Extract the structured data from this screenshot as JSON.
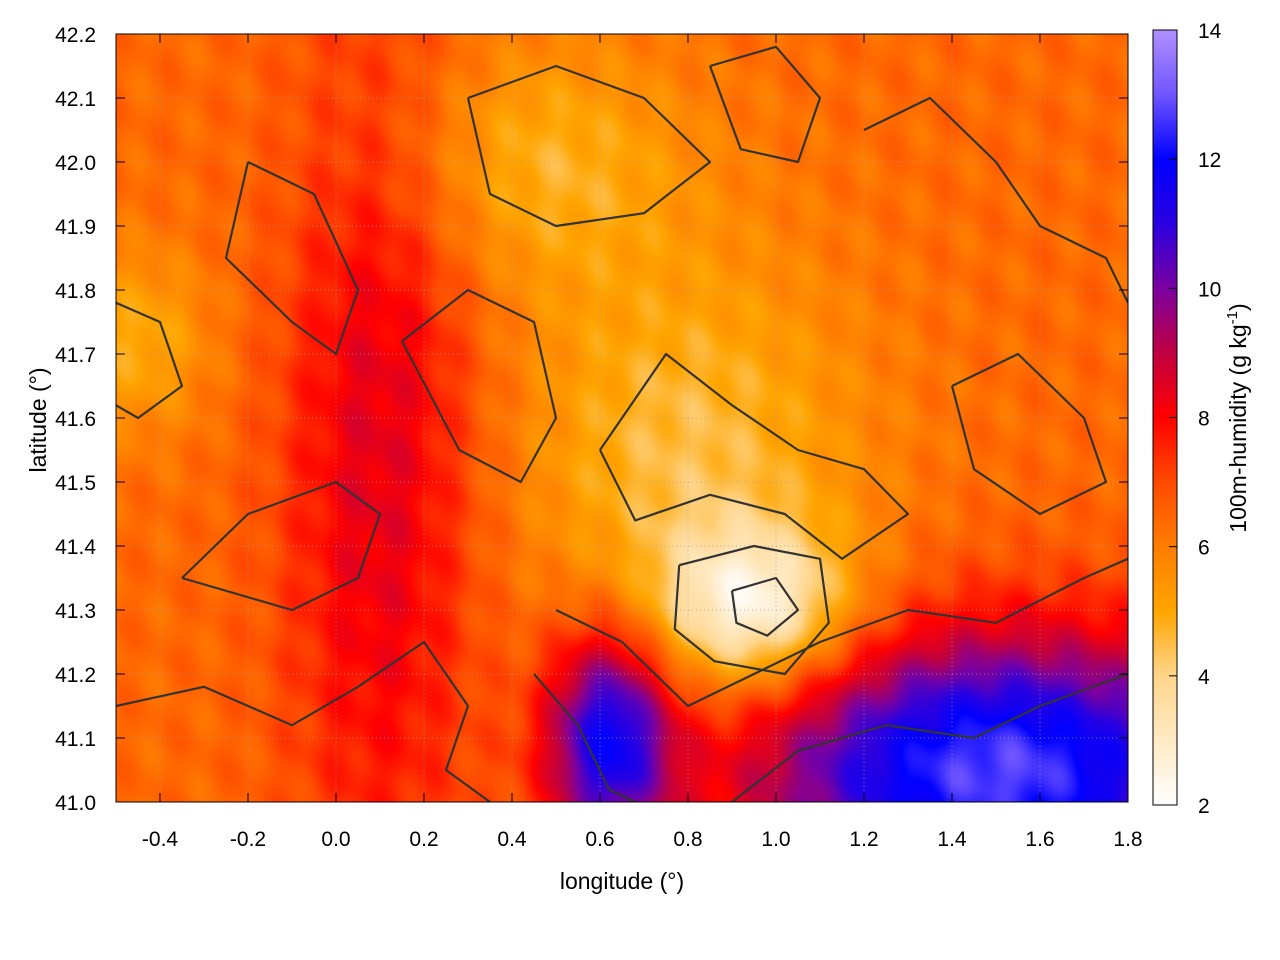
{
  "chart_data": {
    "type": "heatmap",
    "title": "",
    "xlabel": "longitude (°)",
    "ylabel": "latitude (°)",
    "xlim": [
      -0.5,
      1.8
    ],
    "ylim": [
      41.0,
      42.2
    ],
    "xticks": [
      "-0.4",
      "-0.2",
      "0.0",
      "0.2",
      "0.4",
      "0.6",
      "0.8",
      "1.0",
      "1.2",
      "1.4",
      "1.6",
      "1.8"
    ],
    "yticks": [
      "41.0",
      "41.1",
      "41.2",
      "41.3",
      "41.4",
      "41.5",
      "41.6",
      "41.7",
      "41.8",
      "41.9",
      "42.0",
      "42.1",
      "42.2"
    ],
    "grid": true,
    "colorbar": {
      "label_main": "100m-humidity (g kg",
      "label_exp": "-1",
      "label_close": ")",
      "range": [
        2,
        14
      ],
      "ticks": [
        "2",
        "4",
        "6",
        "8",
        "10",
        "12",
        "14"
      ],
      "stops": [
        {
          "value": 2,
          "color": "#ffffff"
        },
        {
          "value": 4,
          "color": "#ffd58a"
        },
        {
          "value": 5,
          "color": "#ffa500"
        },
        {
          "value": 6,
          "color": "#ff7d00"
        },
        {
          "value": 7,
          "color": "#ff4a00"
        },
        {
          "value": 8,
          "color": "#ff0000"
        },
        {
          "value": 9,
          "color": "#c00040"
        },
        {
          "value": 10,
          "color": "#7a00a0"
        },
        {
          "value": 11,
          "color": "#2a00e0"
        },
        {
          "value": 12,
          "color": "#0000ff"
        },
        {
          "value": 13,
          "color": "#7055ff"
        },
        {
          "value": 14,
          "color": "#b090ff"
        }
      ]
    },
    "field_features": [
      {
        "name": "dry core",
        "lon": 0.95,
        "lat": 41.3,
        "value": 2.8,
        "spread_lon": 0.16,
        "spread_lat": 0.09
      },
      {
        "name": "dry plume",
        "lon": 0.8,
        "lat": 41.55,
        "value": 4.5,
        "spread_lon": 0.28,
        "spread_lat": 0.22
      },
      {
        "name": "dry north",
        "lon": 0.45,
        "lat": 42.0,
        "value": 4.8,
        "spread_lon": 0.25,
        "spread_lat": 0.14
      },
      {
        "name": "dry west",
        "lon": -0.45,
        "lat": 41.72,
        "value": 4.9,
        "spread_lon": 0.12,
        "spread_lat": 0.1
      },
      {
        "name": "moist band",
        "lon": 0.1,
        "lat": 41.55,
        "value": 8.5,
        "spread_lon": 0.16,
        "spread_lat": 0.5
      },
      {
        "name": "coastal moist",
        "lon": 1.5,
        "lat": 41.05,
        "value": 12.8,
        "spread_lon": 0.4,
        "spread_lat": 0.15
      },
      {
        "name": "coastal moist west",
        "lon": 0.62,
        "lat": 41.1,
        "value": 11.5,
        "spread_lon": 0.1,
        "spread_lat": 0.12
      }
    ],
    "contours": [
      {
        "name": "contour-dry-core",
        "points": [
          [
            0.78,
            41.37
          ],
          [
            0.95,
            41.4
          ],
          [
            1.1,
            41.38
          ],
          [
            1.12,
            41.28
          ],
          [
            1.02,
            41.2
          ],
          [
            0.86,
            41.22
          ],
          [
            0.77,
            41.27
          ],
          [
            0.78,
            41.37
          ]
        ]
      },
      {
        "name": "contour-dry-inner",
        "points": [
          [
            0.9,
            41.33
          ],
          [
            1.0,
            41.35
          ],
          [
            1.05,
            41.3
          ],
          [
            0.98,
            41.26
          ],
          [
            0.91,
            41.28
          ],
          [
            0.9,
            41.33
          ]
        ]
      },
      {
        "name": "contour-dry-plume",
        "points": [
          [
            0.6,
            41.55
          ],
          [
            0.75,
            41.7
          ],
          [
            0.9,
            41.62
          ],
          [
            1.05,
            41.55
          ],
          [
            1.2,
            41.52
          ],
          [
            1.3,
            41.45
          ],
          [
            1.15,
            41.38
          ],
          [
            1.02,
            41.45
          ],
          [
            0.85,
            41.48
          ],
          [
            0.68,
            41.44
          ],
          [
            0.6,
            41.55
          ]
        ]
      },
      {
        "name": "contour-north-1",
        "points": [
          [
            0.3,
            42.1
          ],
          [
            0.5,
            42.15
          ],
          [
            0.7,
            42.1
          ],
          [
            0.85,
            42.0
          ],
          [
            0.7,
            41.92
          ],
          [
            0.5,
            41.9
          ],
          [
            0.35,
            41.95
          ],
          [
            0.3,
            42.1
          ]
        ]
      },
      {
        "name": "contour-north-2",
        "points": [
          [
            0.85,
            42.15
          ],
          [
            1.0,
            42.18
          ],
          [
            1.1,
            42.1
          ],
          [
            1.05,
            42.0
          ],
          [
            0.92,
            42.02
          ],
          [
            0.85,
            42.15
          ]
        ]
      },
      {
        "name": "contour-west-1",
        "points": [
          [
            -0.5,
            41.78
          ],
          [
            -0.4,
            41.75
          ],
          [
            -0.35,
            41.65
          ],
          [
            -0.45,
            41.6
          ],
          [
            -0.5,
            41.62
          ]
        ]
      },
      {
        "name": "contour-band-west",
        "points": [
          [
            -0.2,
            42.0
          ],
          [
            -0.05,
            41.95
          ],
          [
            0.05,
            41.8
          ],
          [
            0.0,
            41.7
          ],
          [
            -0.1,
            41.75
          ],
          [
            -0.25,
            41.85
          ],
          [
            -0.2,
            42.0
          ]
        ]
      },
      {
        "name": "contour-band-south",
        "points": [
          [
            -0.35,
            41.35
          ],
          [
            -0.1,
            41.3
          ],
          [
            0.05,
            41.35
          ],
          [
            0.1,
            41.45
          ],
          [
            0.0,
            41.5
          ],
          [
            -0.2,
            41.45
          ],
          [
            -0.35,
            41.35
          ]
        ]
      },
      {
        "name": "contour-central",
        "points": [
          [
            0.15,
            41.72
          ],
          [
            0.3,
            41.8
          ],
          [
            0.45,
            41.75
          ],
          [
            0.5,
            41.6
          ],
          [
            0.42,
            41.5
          ],
          [
            0.28,
            41.55
          ],
          [
            0.15,
            41.72
          ]
        ]
      },
      {
        "name": "contour-coast-1",
        "points": [
          [
            0.5,
            41.3
          ],
          [
            0.65,
            41.25
          ],
          [
            0.8,
            41.15
          ],
          [
            0.95,
            41.2
          ],
          [
            1.1,
            41.25
          ],
          [
            1.3,
            41.3
          ],
          [
            1.5,
            41.28
          ],
          [
            1.7,
            41.35
          ],
          [
            1.8,
            41.38
          ]
        ]
      },
      {
        "name": "contour-coast-2",
        "points": [
          [
            0.9,
            41.0
          ],
          [
            1.05,
            41.08
          ],
          [
            1.25,
            41.12
          ],
          [
            1.45,
            41.1
          ],
          [
            1.6,
            41.15
          ],
          [
            1.8,
            41.2
          ]
        ]
      },
      {
        "name": "contour-coast-3",
        "points": [
          [
            0.45,
            41.2
          ],
          [
            0.55,
            41.12
          ],
          [
            0.62,
            41.02
          ],
          [
            0.68,
            41.0
          ]
        ]
      },
      {
        "name": "contour-southwest",
        "points": [
          [
            -0.5,
            41.15
          ],
          [
            -0.3,
            41.18
          ],
          [
            -0.1,
            41.12
          ],
          [
            0.05,
            41.18
          ],
          [
            0.2,
            41.25
          ],
          [
            0.3,
            41.15
          ],
          [
            0.25,
            41.05
          ],
          [
            0.35,
            41.0
          ]
        ]
      },
      {
        "name": "contour-northeast",
        "points": [
          [
            1.2,
            42.05
          ],
          [
            1.35,
            42.1
          ],
          [
            1.5,
            42.0
          ],
          [
            1.6,
            41.9
          ],
          [
            1.75,
            41.85
          ],
          [
            1.8,
            41.78
          ]
        ]
      },
      {
        "name": "contour-east-mid",
        "points": [
          [
            1.4,
            41.65
          ],
          [
            1.55,
            41.7
          ],
          [
            1.7,
            41.6
          ],
          [
            1.75,
            41.5
          ],
          [
            1.6,
            41.45
          ],
          [
            1.45,
            41.52
          ],
          [
            1.4,
            41.65
          ]
        ]
      }
    ]
  }
}
